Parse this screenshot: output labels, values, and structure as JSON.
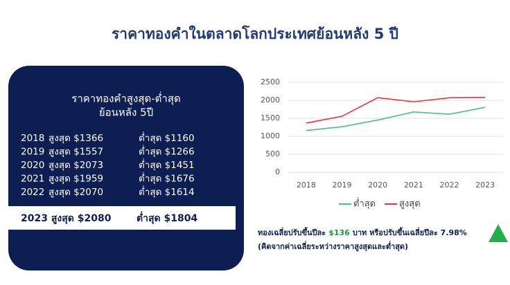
{
  "title": "ราคาทองคำในตลาดโลกประเทศย้อนหลัง 5 ปี",
  "panel": {
    "heading": [
      "ราคาทองคำสูงสุด-ต่ำสุด",
      "ย้อนหลัง 5ปี"
    ],
    "rows": [
      [
        "2018",
        "สูงสุด $1366",
        "ต่ำสุด $1160"
      ],
      [
        "2019",
        "สูงสุด $1557",
        "ต่ำสุด $1266"
      ],
      [
        "2020",
        "สูงสุด $2073",
        "ต่ำสุด $1451"
      ],
      [
        "2021",
        "สูงสุด $1959",
        "ต่ำสุด $1676"
      ],
      [
        "2022",
        "สูงสุด $2070",
        "ต่ำสุด $1614"
      ]
    ],
    "highlight": [
      "2023 สูงสุด $2080",
      "ต่ำสุด $1804"
    ]
  },
  "chart_data": {
    "type": "line",
    "categories": [
      "2018",
      "2019",
      "2020",
      "2021",
      "2022",
      "2023"
    ],
    "series": [
      {
        "name": "ต่ำสุด",
        "color": "#4cc07a",
        "values": [
          1160,
          1266,
          1451,
          1676,
          1614,
          1804
        ]
      },
      {
        "name": "สูงสุด",
        "color": "#ee3030",
        "values": [
          1366,
          1557,
          2073,
          1959,
          2070,
          2080
        ]
      }
    ],
    "ylim": [
      0,
      2500
    ],
    "yticks": [
      0,
      500,
      1000,
      1500,
      2000,
      2500
    ],
    "grid": true,
    "legend": "bottom"
  },
  "note": {
    "line1": [
      "ทองเฉลี่ยปรับขึ้นปีละ",
      "$136",
      "บาท หรือปรับขึ้นเฉลี่ยปีละ 7.98%"
    ],
    "line2": "(คิดจากค่าเฉลี่ยระหว่างราคาสูงสุดและต่ำสุด)"
  }
}
